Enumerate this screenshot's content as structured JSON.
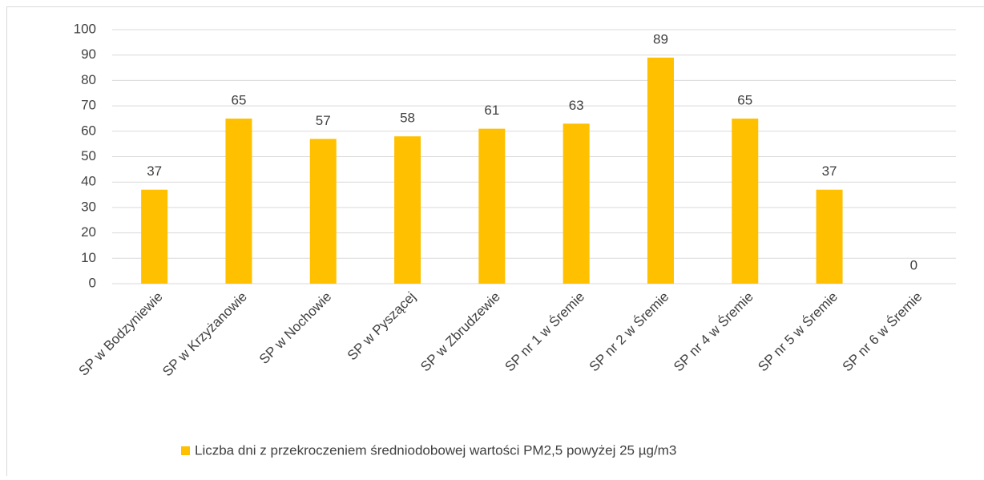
{
  "chart_data": {
    "type": "bar",
    "categories": [
      "SP w Bodzyniewie",
      "SP w Krzyżanowie",
      "SP w Nochowie",
      "SP w Pyszącej",
      "SP w Zbrudzewie",
      "SP nr 1 w Śremie",
      "SP nr 2 w Śremie",
      "SP nr 4 w Śremie",
      "SP nr 5 w Śremie",
      "SP nr 6 w Śremie"
    ],
    "series": [
      {
        "name": "Liczba dni z przekroczeniem średniodobowej wartości PM2,5 powyżej 25 µg/m3",
        "color": "#ffc000",
        "values": [
          37,
          65,
          57,
          58,
          61,
          63,
          89,
          65,
          37,
          0
        ]
      }
    ],
    "ylim": [
      0,
      100
    ],
    "yticks": [
      0,
      10,
      20,
      30,
      40,
      50,
      60,
      70,
      80,
      90,
      100
    ],
    "grid": true,
    "legend": "bottom"
  }
}
